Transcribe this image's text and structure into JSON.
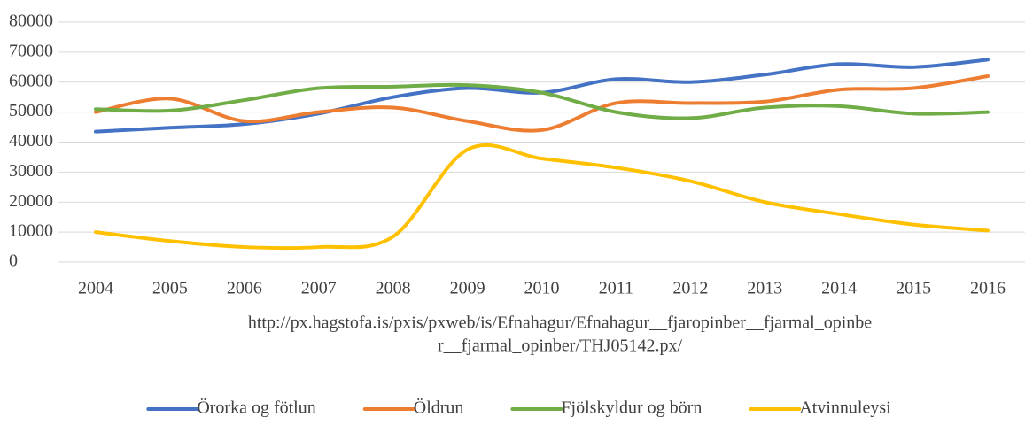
{
  "chart_data": {
    "type": "line",
    "xlabel": [
      "http://px.hagstofa.is/pxis/pxweb/is/Efnahagur/Efnahagur__fjaropinber__fjarmal_opinbe",
      "r__fjarmal_opinber/THJ05142.px/"
    ],
    "categories": [
      "2004",
      "2005",
      "2006",
      "2007",
      "2008",
      "2009",
      "2010",
      "2011",
      "2012",
      "2013",
      "2014",
      "2015",
      "2016"
    ],
    "series": [
      {
        "name": "Örorka og fötlun",
        "color": "#4472c4",
        "values": [
          43500,
          44800,
          46000,
          49500,
          55000,
          58000,
          56500,
          61000,
          60000,
          62500,
          66000,
          65000,
          67500
        ]
      },
      {
        "name": "Öldrun",
        "color": "#ed7d31",
        "values": [
          50000,
          54500,
          47000,
          50000,
          51500,
          47000,
          44000,
          53000,
          53000,
          53500,
          57500,
          58000,
          62000
        ]
      },
      {
        "name": "Fjölskyldur og börn",
        "color": "#70ad47",
        "values": [
          51000,
          50500,
          54000,
          58000,
          58500,
          59000,
          56500,
          50000,
          48000,
          51500,
          52000,
          49500,
          50000
        ]
      },
      {
        "name": "Atvinnuleysi",
        "color": "#ffc000",
        "values": [
          10000,
          7000,
          5000,
          5000,
          8500,
          37500,
          34500,
          31500,
          27000,
          20000,
          16000,
          12500,
          10500
        ]
      }
    ],
    "ylim": [
      0,
      80000
    ],
    "yticks": [
      0,
      10000,
      20000,
      30000,
      40000,
      50000,
      60000,
      70000,
      80000
    ],
    "grid": true,
    "smooth": true,
    "legend": "bottom"
  }
}
